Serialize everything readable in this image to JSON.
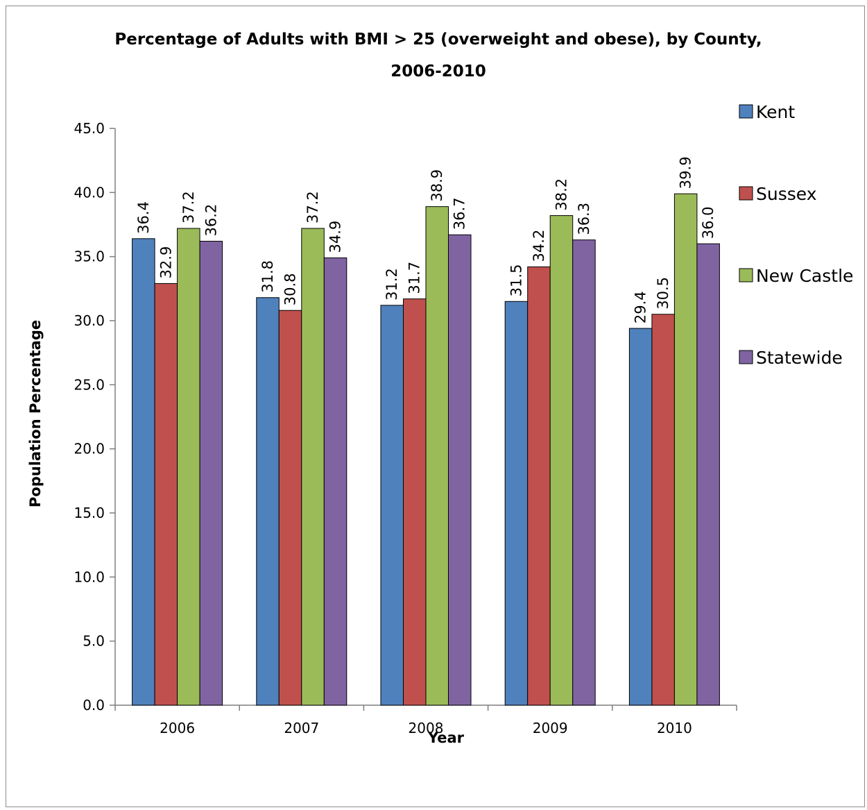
{
  "chart_data": {
    "type": "bar",
    "title_line1": "Percentage of Adults with BMI > 25 (overweight and obese), by County,",
    "title_line2": "2006-2010",
    "xlabel": "Year",
    "ylabel": "Population Percentage",
    "ylim": [
      0,
      45
    ],
    "ytick_step": 5,
    "ytick_labels": [
      "0.0",
      "5.0",
      "10.0",
      "15.0",
      "20.0",
      "25.0",
      "30.0",
      "35.0",
      "40.0",
      "45.0"
    ],
    "categories": [
      "2006",
      "2007",
      "2008",
      "2009",
      "2010"
    ],
    "series": [
      {
        "name": "Kent",
        "color": "#4f81bd",
        "values": [
          36.4,
          31.8,
          31.2,
          31.5,
          29.4
        ]
      },
      {
        "name": "Sussex",
        "color": "#c0504d",
        "values": [
          32.9,
          30.8,
          31.7,
          34.2,
          30.5
        ]
      },
      {
        "name": "New Castle",
        "color": "#9bbb59",
        "values": [
          37.2,
          37.2,
          38.9,
          38.2,
          39.9
        ]
      },
      {
        "name": "Statewide",
        "color": "#8064a2",
        "values": [
          36.2,
          34.9,
          36.7,
          36.3,
          36.0
        ]
      }
    ],
    "data_labels": "vertical",
    "grid": false,
    "legend_position": "right"
  }
}
